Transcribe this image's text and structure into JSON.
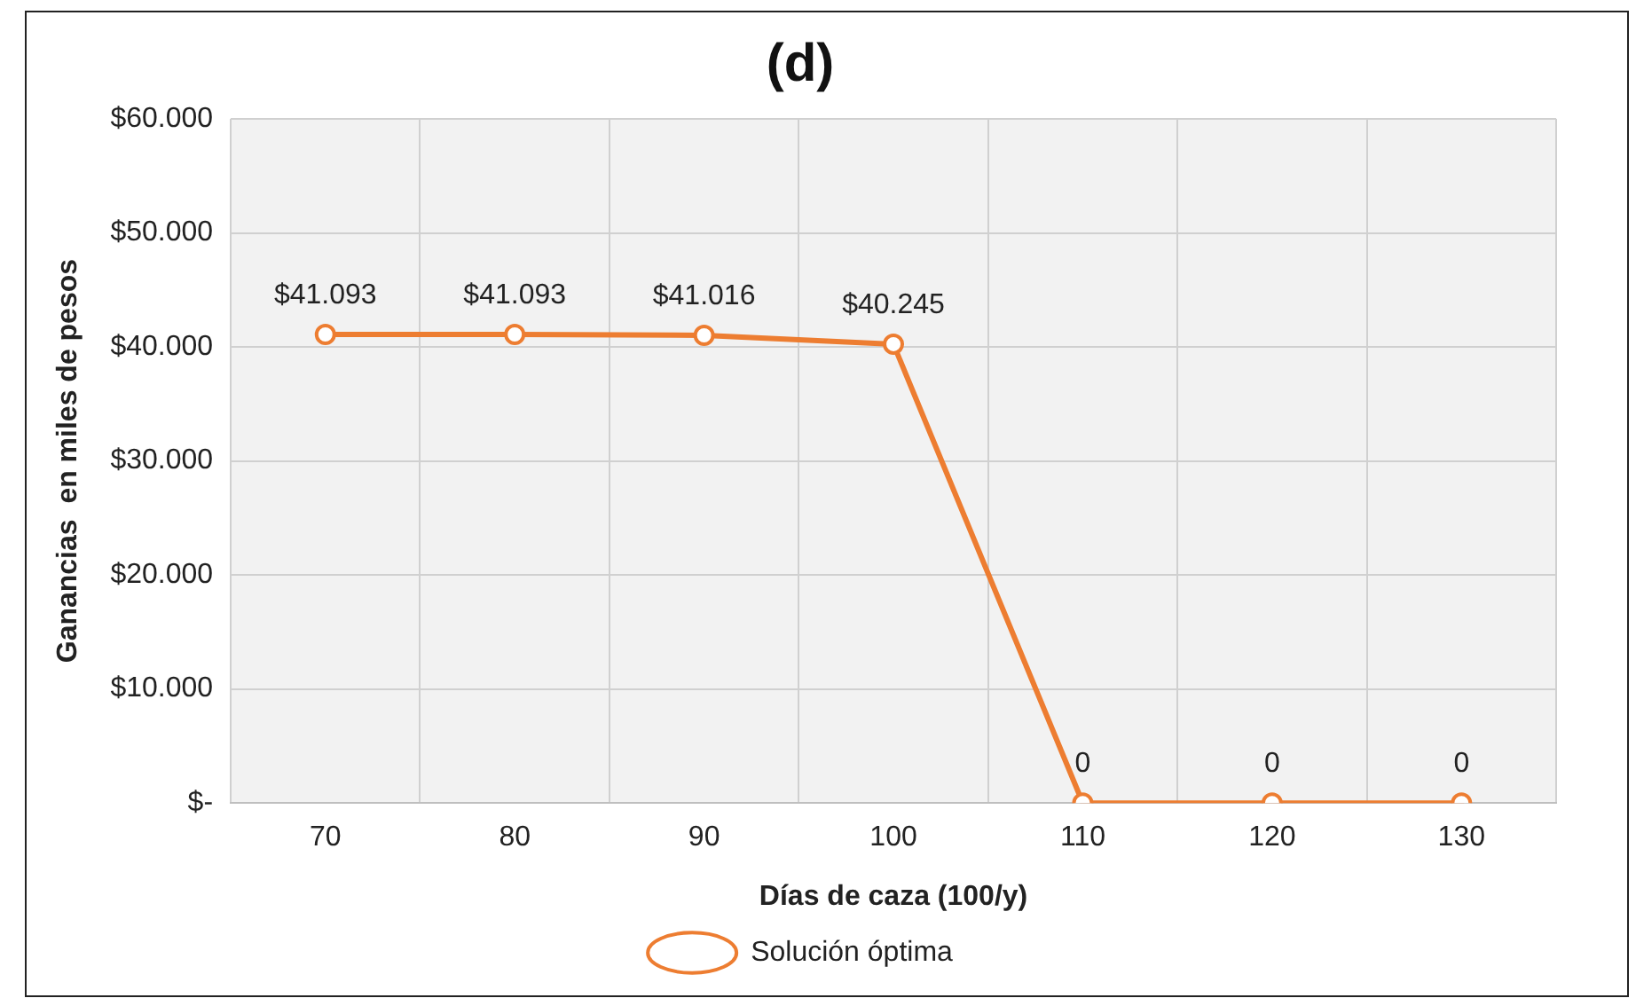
{
  "chart_data": {
    "type": "line",
    "title": "(d)",
    "xlabel": "Días de caza (100/y)",
    "ylabel": "Ganancias  en miles de pesos",
    "categories": [
      "70",
      "80",
      "90",
      "100",
      "110",
      "120",
      "130"
    ],
    "series": [
      {
        "name": "Solución óptima",
        "color": "#ed7d31",
        "values": [
          41093,
          41093,
          41016,
          40245,
          0,
          0,
          0
        ],
        "value_labels": [
          "$41.093",
          "$41.093",
          "$41.016",
          "$40.245",
          "0",
          "0",
          "0"
        ]
      }
    ],
    "ylim": [
      0,
      60000
    ],
    "yticks": [
      {
        "value": 0,
        "label": "$-"
      },
      {
        "value": 10000,
        "label": "$10.000"
      },
      {
        "value": 20000,
        "label": "$20.000"
      },
      {
        "value": 30000,
        "label": "$30.000"
      },
      {
        "value": 40000,
        "label": "$40.000"
      },
      {
        "value": 50000,
        "label": "$50.000"
      },
      {
        "value": 60000,
        "label": "$60.000"
      }
    ],
    "grid": true,
    "legend": "bottom",
    "marker": "circle",
    "line_style": "solid"
  }
}
